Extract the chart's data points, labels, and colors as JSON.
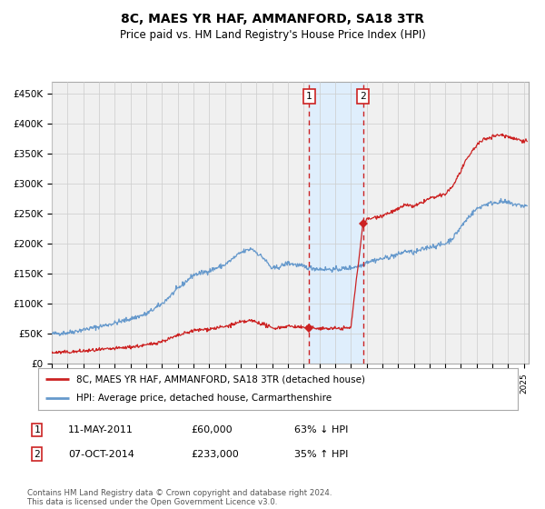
{
  "title": "8C, MAES YR HAF, AMMANFORD, SA18 3TR",
  "subtitle": "Price paid vs. HM Land Registry's House Price Index (HPI)",
  "ylabel_ticks": [
    "£0",
    "£50K",
    "£100K",
    "£150K",
    "£200K",
    "£250K",
    "£300K",
    "£350K",
    "£400K",
    "£450K"
  ],
  "ytick_vals": [
    0,
    50000,
    100000,
    150000,
    200000,
    250000,
    300000,
    350000,
    400000,
    450000
  ],
  "ylim": [
    0,
    470000
  ],
  "xlim_start": 1995.0,
  "xlim_end": 2025.3,
  "hpi_color": "#6699cc",
  "price_color": "#cc2222",
  "background_color": "#ffffff",
  "chart_bg_color": "#f0f0f0",
  "shade_color": "#ddeeff",
  "grid_color": "#cccccc",
  "event1_x": 2011.36,
  "event2_x": 2014.77,
  "event1_price": 60000,
  "event2_price": 233000,
  "event1_label": "1",
  "event2_label": "2",
  "legend_line1": "8C, MAES YR HAF, AMMANFORD, SA18 3TR (detached house)",
  "legend_line2": "HPI: Average price, detached house, Carmarthenshire",
  "table_row1_num": "1",
  "table_row1_date": "11-MAY-2011",
  "table_row1_price": "£60,000",
  "table_row1_hpi": "63% ↓ HPI",
  "table_row2_num": "2",
  "table_row2_date": "07-OCT-2014",
  "table_row2_price": "£233,000",
  "table_row2_hpi": "35% ↑ HPI",
  "footnote": "Contains HM Land Registry data © Crown copyright and database right 2024.\nThis data is licensed under the Open Government Licence v3.0."
}
